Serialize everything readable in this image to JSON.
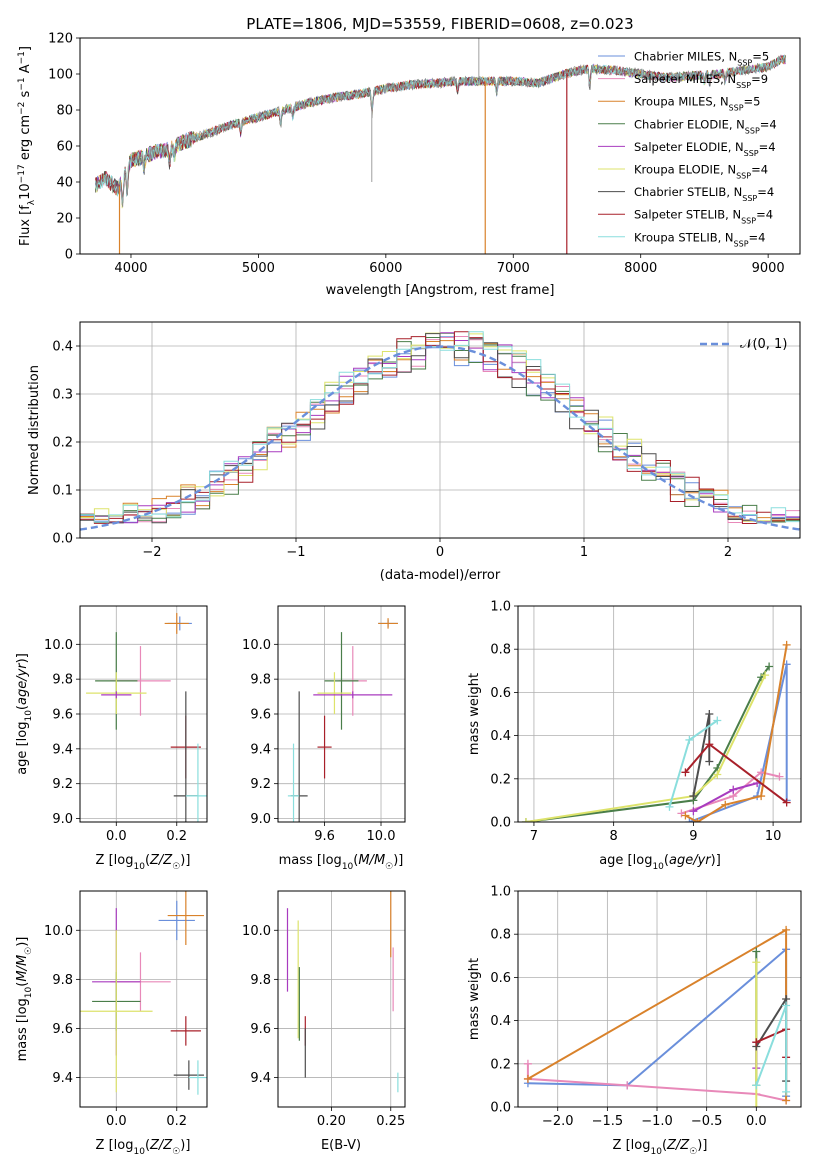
{
  "figure": {
    "title": "PLATE=1806, MJD=53559, FIBERID=0608, z=0.023"
  },
  "colors": {
    "Chabrier MILES": "#6a8fdb",
    "Salpeter MILES": "#e889b9",
    "Kroupa MILES": "#d9822b",
    "Chabrier ELODIE": "#4a7e4a",
    "Salpeter ELODIE": "#a83bbf",
    "Kroupa ELODIE": "#dde36b",
    "Chabrier STELIB": "#4d4d4d",
    "Salpeter STELIB": "#a8202a",
    "Kroupa STELIB": "#8adedd",
    "gaussian": "#6a8fdb"
  },
  "chart_data": [
    {
      "panel": "spectrum",
      "type": "line",
      "xlabel": "wavelength [Angstrom, rest frame]",
      "ylabel": "Flux [f_λ10^-17 erg cm^-2 s^-1 A^-1]",
      "xlim": [
        3600,
        9250
      ],
      "ylim": [
        0,
        120
      ],
      "xticks": [
        4000,
        5000,
        6000,
        7000,
        8000,
        9000
      ],
      "yticks": [
        0,
        20,
        40,
        60,
        80,
        100,
        120
      ],
      "grid": false,
      "legend_position": "right",
      "legend": [
        {
          "name": "Chabrier MILES",
          "sub": "5"
        },
        {
          "name": "Salpeter MILES",
          "sub": "9"
        },
        {
          "name": "Kroupa MILES",
          "sub": "5"
        },
        {
          "name": "Chabrier ELODIE",
          "sub": "4"
        },
        {
          "name": "Salpeter ELODIE",
          "sub": "4"
        },
        {
          "name": "Kroupa ELODIE",
          "sub": "4"
        },
        {
          "name": "Chabrier STELIB",
          "sub": "4"
        },
        {
          "name": "Salpeter STELIB",
          "sub": "4"
        },
        {
          "name": "Kroupa STELIB",
          "sub": "4"
        }
      ],
      "continuum": {
        "x": [
          3720,
          3800,
          3900,
          4000,
          4100,
          4200,
          4300,
          4400,
          4600,
          4800,
          5000,
          5200,
          5400,
          5600,
          5800,
          6000,
          6200,
          6400,
          6600,
          6800,
          7000,
          7200,
          7400,
          7600,
          7800,
          8000,
          8200,
          8400,
          8600,
          8800,
          9000,
          9100
        ],
        "y": [
          38,
          42,
          36,
          52,
          54,
          57,
          58,
          62,
          67,
          72,
          76,
          80,
          84,
          87,
          89,
          92,
          94,
          95,
          96,
          96,
          96,
          95,
          100,
          103,
          102,
          100,
          98,
          99,
          100,
          102,
          104,
          108
        ]
      },
      "dropouts": [
        {
          "x": 3910,
          "series": "Kroupa MILES"
        },
        {
          "x": 6780,
          "series": "Kroupa MILES"
        },
        {
          "x": 7420,
          "series": "Salpeter STELIB"
        }
      ]
    },
    {
      "panel": "residuals",
      "type": "histogram",
      "xlabel": "(data-model)/error",
      "ylabel": "Normed distribution",
      "xlim": [
        -2.5,
        2.5
      ],
      "ylim": [
        0,
        0.45
      ],
      "xticks": [
        -2,
        -1,
        0,
        1,
        2
      ],
      "yticks": [
        0.0,
        0.1,
        0.2,
        0.3,
        0.4
      ],
      "grid": true,
      "legend_position": "top-right",
      "legend": "𝒩(0, 1)",
      "bins": 50
    },
    {
      "panel": "age_vs_Z",
      "type": "errorbar",
      "xlabel": "Z [log10(Z/Z☉)]",
      "ylabel": "age [log10(age/yr)]",
      "xlim": [
        -0.12,
        0.3
      ],
      "ylim": [
        8.98,
        10.22
      ],
      "xticks": [
        0.0,
        0.2
      ],
      "yticks": [
        9.0,
        9.2,
        9.4,
        9.6,
        9.8,
        10.0
      ],
      "grid": true,
      "points": [
        {
          "s": "Chabrier MILES",
          "x": 0.21,
          "y": 10.12,
          "xe": 0.04,
          "ye": 0.04
        },
        {
          "s": "Kroupa MILES",
          "x": 0.2,
          "y": 10.12,
          "xe": 0.04,
          "ye": 0.06
        },
        {
          "s": "Salpeter MILES",
          "x": 0.08,
          "y": 9.79,
          "xe": 0.1,
          "ye": 0.2
        },
        {
          "s": "Chabrier ELODIE",
          "x": 0.0,
          "y": 9.79,
          "xe": 0.07,
          "ye": 0.28
        },
        {
          "s": "Kroupa ELODIE",
          "x": 0.0,
          "y": 9.72,
          "xe": 0.1,
          "ye": 0.12
        },
        {
          "s": "Salpeter ELODIE",
          "x": 0.0,
          "y": 9.71,
          "xe": 0.05,
          "ye": 0.02
        },
        {
          "s": "Salpeter STELIB",
          "x": 0.23,
          "y": 9.41,
          "xe": 0.05,
          "ye": 0.18
        },
        {
          "s": "Chabrier STELIB",
          "x": 0.23,
          "y": 9.13,
          "xe": 0.04,
          "ye": 0.6
        },
        {
          "s": "Kroupa STELIB",
          "x": 0.27,
          "y": 9.13,
          "xe": 0.04,
          "ye": 0.3
        }
      ]
    },
    {
      "panel": "age_vs_mass",
      "type": "errorbar",
      "xlabel": "mass [log10(M/M☉)]",
      "ylabel": "",
      "xlim": [
        9.27,
        10.17
      ],
      "ylim": [
        8.98,
        10.22
      ],
      "xticks": [
        9.6,
        10.0
      ],
      "xticklabels": [
        "9.6",
        "10.0"
      ],
      "yticks": [
        9.0,
        9.2,
        9.4,
        9.6,
        9.8,
        10.0
      ],
      "grid": true,
      "points": [
        {
          "s": "Chabrier MILES",
          "x": 10.05,
          "y": 10.12,
          "xe": 0.07,
          "ye": 0.02
        },
        {
          "s": "Kroupa MILES",
          "x": 10.05,
          "y": 10.12,
          "xe": 0.07,
          "ye": 0.03
        },
        {
          "s": "Salpeter MILES",
          "x": 9.8,
          "y": 9.79,
          "xe": 0.1,
          "ye": 0.2
        },
        {
          "s": "Chabrier ELODIE",
          "x": 9.72,
          "y": 9.79,
          "xe": 0.12,
          "ye": 0.28
        },
        {
          "s": "Kroupa ELODIE",
          "x": 9.67,
          "y": 9.72,
          "xe": 0.12,
          "ye": 0.12
        },
        {
          "s": "Salpeter ELODIE",
          "x": 9.8,
          "y": 9.71,
          "xe": 0.28,
          "ye": 0.02
        },
        {
          "s": "Salpeter STELIB",
          "x": 9.6,
          "y": 9.41,
          "xe": 0.05,
          "ye": 0.18
        },
        {
          "s": "Chabrier STELIB",
          "x": 9.42,
          "y": 9.13,
          "xe": 0.06,
          "ye": 0.6
        },
        {
          "s": "Kroupa STELIB",
          "x": 9.38,
          "y": 9.13,
          "xe": 0.04,
          "ye": 0.3
        }
      ]
    },
    {
      "panel": "weight_vs_age",
      "type": "line",
      "xlabel": "age [log10(age/yr)]",
      "ylabel": "mass weight",
      "xlim": [
        6.8,
        10.35
      ],
      "ylim": [
        0,
        1
      ],
      "xticks": [
        7,
        8,
        9,
        10
      ],
      "yticks": [
        0.0,
        0.2,
        0.4,
        0.6,
        0.8,
        1.0
      ],
      "grid": true,
      "series": [
        {
          "s": "Chabrier MILES",
          "x": [
            8.95,
            9.8,
            10.17,
            10.17
          ],
          "y": [
            0.0,
            0.12,
            0.73,
            0.1
          ]
        },
        {
          "s": "Salpeter MILES",
          "x": [
            8.85,
            9.5,
            9.85,
            10.08
          ],
          "y": [
            0.04,
            0.12,
            0.23,
            0.21
          ]
        },
        {
          "s": "Kroupa MILES",
          "x": [
            8.9,
            9.05,
            9.4,
            9.85,
            10.17
          ],
          "y": [
            0.03,
            0.0,
            0.08,
            0.12,
            0.82
          ]
        },
        {
          "s": "Chabrier ELODIE",
          "x": [
            6.9,
            9.0,
            9.3,
            9.85,
            9.95
          ],
          "y": [
            0.0,
            0.1,
            0.25,
            0.67,
            0.72
          ]
        },
        {
          "s": "Salpeter ELODIE",
          "x": [
            9.0,
            9.5,
            9.8
          ],
          "y": [
            0.05,
            0.15,
            0.18
          ]
        },
        {
          "s": "Kroupa ELODIE",
          "x": [
            6.9,
            9.0,
            9.3,
            9.9
          ],
          "y": [
            0.0,
            0.12,
            0.22,
            0.68
          ]
        },
        {
          "s": "Chabrier STELIB",
          "x": [
            9.0,
            9.2,
            9.2
          ],
          "y": [
            0.12,
            0.5,
            0.28
          ]
        },
        {
          "s": "Salpeter STELIB",
          "x": [
            8.9,
            9.2,
            10.17
          ],
          "y": [
            0.23,
            0.36,
            0.09
          ]
        },
        {
          "s": "Kroupa STELIB",
          "x": [
            8.7,
            8.95,
            9.3
          ],
          "y": [
            0.07,
            0.38,
            0.47
          ]
        }
      ]
    },
    {
      "panel": "mass_vs_Z",
      "type": "errorbar",
      "xlabel": "Z [log10(Z/Z☉)]",
      "ylabel": "mass [log10(M/M☉)]",
      "xlim": [
        -0.12,
        0.3
      ],
      "ylim": [
        9.28,
        10.16
      ],
      "xticks": [
        0.0,
        0.2
      ],
      "yticks": [
        9.4,
        9.6,
        9.8,
        10.0
      ],
      "grid": true,
      "points": [
        {
          "s": "Chabrier MILES",
          "x": 0.2,
          "y": 10.04,
          "xe": 0.06,
          "ye": 0.08
        },
        {
          "s": "Kroupa MILES",
          "x": 0.23,
          "y": 10.06,
          "xe": 0.06,
          "ye": 0.12
        },
        {
          "s": "Salpeter MILES",
          "x": 0.08,
          "y": 9.79,
          "xe": 0.1,
          "ye": 0.12
        },
        {
          "s": "Salpeter ELODIE",
          "x": 0.0,
          "y": 9.79,
          "xe": 0.08,
          "ye": 0.3
        },
        {
          "s": "Chabrier ELODIE",
          "x": 0.0,
          "y": 9.71,
          "xe": 0.08,
          "ye": 0.12
        },
        {
          "s": "Kroupa ELODIE",
          "x": 0.0,
          "y": 9.67,
          "xe": 0.12,
          "ye": 0.33
        },
        {
          "s": "Salpeter STELIB",
          "x": 0.23,
          "y": 9.59,
          "xe": 0.05,
          "ye": 0.06
        },
        {
          "s": "Chabrier STELIB",
          "x": 0.24,
          "y": 9.41,
          "xe": 0.05,
          "ye": 0.06
        },
        {
          "s": "Kroupa STELIB",
          "x": 0.27,
          "y": 9.4,
          "xe": 0.03,
          "ye": 0.07
        }
      ]
    },
    {
      "panel": "mass_vs_EBV",
      "type": "errorbar",
      "xlabel": "E(B-V)",
      "ylabel": "",
      "xlim": [
        0.155,
        0.262
      ],
      "ylim": [
        9.28,
        10.16
      ],
      "xticks": [
        0.2,
        0.25
      ],
      "xticklabels": [
        "0.20",
        "0.25"
      ],
      "yticks": [
        9.4,
        9.6,
        9.8,
        10.0
      ],
      "grid": true,
      "points": [
        {
          "s": "Salpeter ELODIE",
          "x": 0.163,
          "y": 9.92,
          "xe": 0,
          "ye": 0.17
        },
        {
          "s": "Kroupa ELODIE",
          "x": 0.172,
          "y": 9.8,
          "xe": 0,
          "ye": 0.24
        },
        {
          "s": "Chabrier ELODIE",
          "x": 0.173,
          "y": 9.7,
          "xe": 0,
          "ye": 0.15
        },
        {
          "s": "Salpeter STELIB",
          "x": 0.178,
          "y": 9.59,
          "xe": 0,
          "ye": 0.06
        },
        {
          "s": "Chabrier STELIB",
          "x": 0.178,
          "y": 9.5,
          "xe": 0,
          "ye": 0.1
        },
        {
          "s": "Kroupa MILES",
          "x": 0.25,
          "y": 10.03,
          "xe": 0,
          "ye": 0.14
        },
        {
          "s": "Salpeter MILES",
          "x": 0.252,
          "y": 9.8,
          "xe": 0,
          "ye": 0.13
        },
        {
          "s": "Kroupa STELIB",
          "x": 0.256,
          "y": 9.38,
          "xe": 0,
          "ye": 0.04
        }
      ]
    },
    {
      "panel": "weight_vs_Z",
      "type": "line",
      "xlabel": "Z [log10(Z/Z☉)]",
      "ylabel": "mass weight",
      "xlim": [
        -2.4,
        0.45
      ],
      "ylim": [
        0,
        1
      ],
      "xticks": [
        -2.0,
        -1.5,
        -1.0,
        -0.5,
        0.0
      ],
      "xticklabels": [
        "−2.0",
        "−1.5",
        "−1.0",
        "−0.5",
        "0.0"
      ],
      "yticks": [
        0.0,
        0.2,
        0.4,
        0.6,
        0.8,
        1.0
      ],
      "grid": true,
      "series": [
        {
          "s": "Chabrier MILES",
          "x": [
            -2.3,
            -1.3,
            0.3,
            0.3
          ],
          "y": [
            0.11,
            0.1,
            0.73,
            0.05
          ]
        },
        {
          "s": "Salpeter MILES",
          "x": [
            -2.3,
            -2.3,
            -1.3,
            0.0,
            0.3
          ],
          "y": [
            0.2,
            0.13,
            0.1,
            0.06,
            0.03
          ]
        },
        {
          "s": "Kroupa MILES",
          "x": [
            -2.3,
            0.3,
            0.3
          ],
          "y": [
            0.13,
            0.82,
            0.03
          ]
        },
        {
          "s": "Chabrier ELODIE",
          "x": [
            0.0,
            0.0
          ],
          "y": [
            0.72,
            0.1
          ]
        },
        {
          "s": "Salpeter ELODIE",
          "x": [
            0.0,
            0.0
          ],
          "y": [
            0.3,
            0.18
          ]
        },
        {
          "s": "Kroupa ELODIE",
          "x": [
            0.0,
            0.0
          ],
          "y": [
            0.67,
            0.0
          ]
        },
        {
          "s": "Chabrier STELIB",
          "x": [
            0.0,
            0.3,
            0.3
          ],
          "y": [
            0.28,
            0.5,
            0.12
          ]
        },
        {
          "s": "Salpeter STELIB",
          "x": [
            0.0,
            0.3,
            0.3
          ],
          "y": [
            0.3,
            0.36,
            0.23
          ]
        },
        {
          "s": "Kroupa STELIB",
          "x": [
            0.0,
            0.3,
            0.3
          ],
          "y": [
            0.1,
            0.47,
            0.07
          ]
        }
      ]
    }
  ]
}
